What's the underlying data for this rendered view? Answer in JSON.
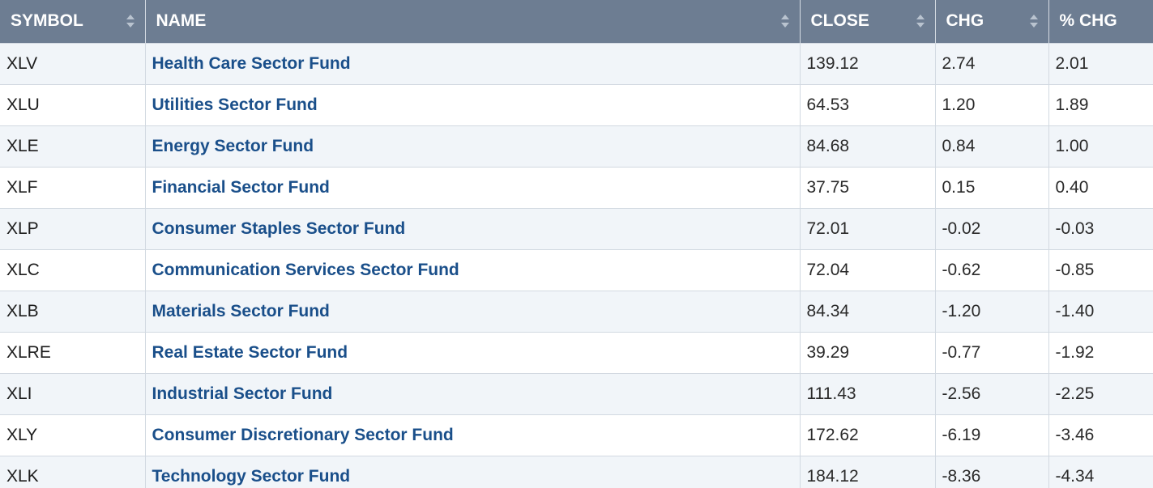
{
  "columns": {
    "symbol": "SYMBOL",
    "name": "NAME",
    "close": "CLOSE",
    "chg": "CHG",
    "pct_chg": "% CHG"
  },
  "rows": [
    {
      "symbol": "XLV",
      "name": "Health Care Sector Fund",
      "close": "139.12",
      "chg": "2.74",
      "pct_chg": "2.01"
    },
    {
      "symbol": "XLU",
      "name": "Utilities Sector Fund",
      "close": "64.53",
      "chg": "1.20",
      "pct_chg": "1.89"
    },
    {
      "symbol": "XLE",
      "name": "Energy Sector Fund",
      "close": "84.68",
      "chg": "0.84",
      "pct_chg": "1.00"
    },
    {
      "symbol": "XLF",
      "name": "Financial Sector Fund",
      "close": "37.75",
      "chg": "0.15",
      "pct_chg": "0.40"
    },
    {
      "symbol": "XLP",
      "name": "Consumer Staples Sector Fund",
      "close": "72.01",
      "chg": "-0.02",
      "pct_chg": "-0.03"
    },
    {
      "symbol": "XLC",
      "name": "Communication Services Sector Fund",
      "close": "72.04",
      "chg": "-0.62",
      "pct_chg": "-0.85"
    },
    {
      "symbol": "XLB",
      "name": "Materials Sector Fund",
      "close": "84.34",
      "chg": "-1.20",
      "pct_chg": "-1.40"
    },
    {
      "symbol": "XLRE",
      "name": "Real Estate Sector Fund",
      "close": "39.29",
      "chg": "-0.77",
      "pct_chg": "-1.92"
    },
    {
      "symbol": "XLI",
      "name": "Industrial Sector Fund",
      "close": "111.43",
      "chg": "-2.56",
      "pct_chg": "-2.25"
    },
    {
      "symbol": "XLY",
      "name": "Consumer Discretionary Sector Fund",
      "close": "172.62",
      "chg": "-6.19",
      "pct_chg": "-3.46"
    },
    {
      "symbol": "XLK",
      "name": "Technology Sector Fund",
      "close": "184.12",
      "chg": "-8.36",
      "pct_chg": "-4.34"
    }
  ],
  "colors": {
    "header_bg": "#6d7d92",
    "link": "#1a4f8a",
    "row_alt": "#f1f5f9"
  },
  "icons": {
    "sort": "sort-arrows-icon"
  }
}
